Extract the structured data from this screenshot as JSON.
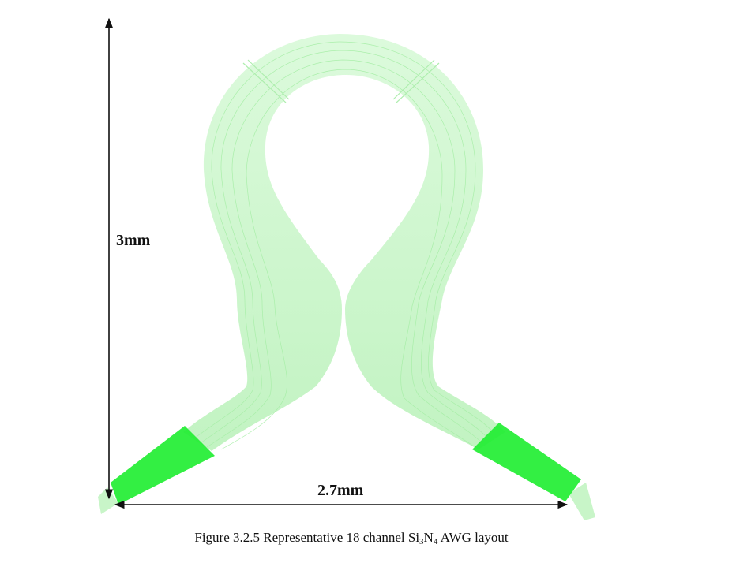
{
  "figure": {
    "height_label": "3mm",
    "width_label": "2.7mm",
    "caption": {
      "prefix": "Figure 3.2.5 Representative 18 channel Si",
      "sub1": "3",
      "mid": "N",
      "sub2": "4",
      "suffix": " AWG layout"
    },
    "colors": {
      "waveguide_light": "#c8f5c8",
      "waveguide_line": "#a6eea6",
      "slab_region": "#22ee33",
      "dimension_line": "#111111"
    }
  }
}
